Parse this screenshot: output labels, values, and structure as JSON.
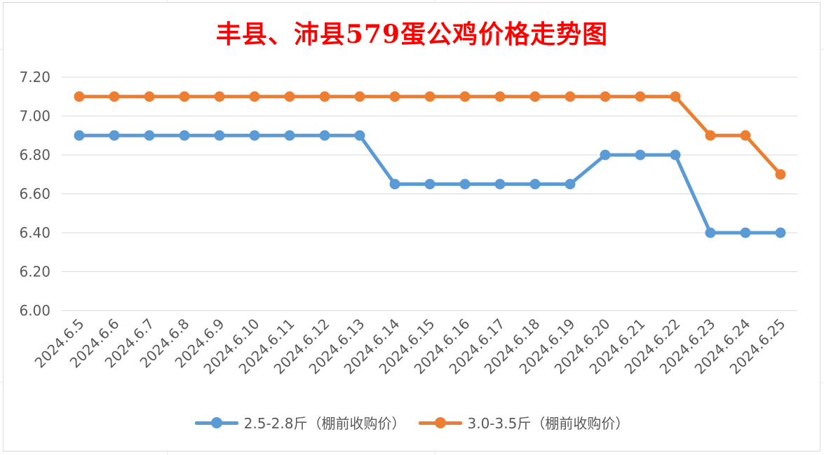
{
  "chart_data": {
    "type": "line",
    "title": "丰县、沛县579蛋公鸡价格走势图",
    "xlabel": "",
    "ylabel": "",
    "x": [
      "2024.6.5",
      "2024.6.6",
      "2024.6.7",
      "2024.6.8",
      "2024.6.9",
      "2024.6.10",
      "2024.6.11",
      "2024.6.12",
      "2024.6.13",
      "2024.6.14",
      "2024.6.15",
      "2024.6.16",
      "2024.6.17",
      "2024.6.18",
      "2024.6.19",
      "2024.6.20",
      "2024.6.21",
      "2024.6.22",
      "2024.6.23",
      "2024.6.24",
      "2024.6.25"
    ],
    "ylim": [
      6.0,
      7.2
    ],
    "yticks": [
      "6.00",
      "6.20",
      "6.40",
      "6.60",
      "6.80",
      "7.00",
      "7.20"
    ],
    "grid": true,
    "legend_position": "bottom",
    "series": [
      {
        "name": "2.5-2.8斤（棚前收购价）",
        "color": "#5b9bd5",
        "values": [
          6.9,
          6.9,
          6.9,
          6.9,
          6.9,
          6.9,
          6.9,
          6.9,
          6.9,
          6.65,
          6.65,
          6.65,
          6.65,
          6.65,
          6.65,
          6.8,
          6.8,
          6.8,
          6.4,
          6.4,
          6.4
        ]
      },
      {
        "name": "3.0-3.5斤（棚前收购价）",
        "color": "#ed7d31",
        "values": [
          7.1,
          7.1,
          7.1,
          7.1,
          7.1,
          7.1,
          7.1,
          7.1,
          7.1,
          7.1,
          7.1,
          7.1,
          7.1,
          7.1,
          7.1,
          7.1,
          7.1,
          7.1,
          6.9,
          6.9,
          6.7
        ]
      }
    ]
  }
}
